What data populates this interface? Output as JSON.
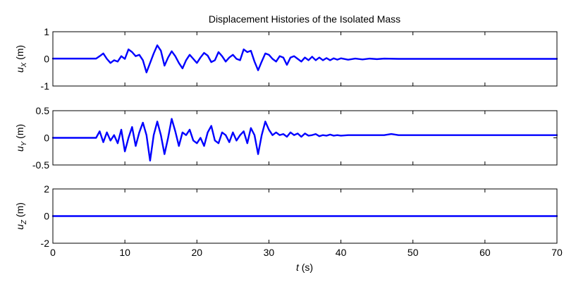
{
  "chart_data": {
    "type": "line",
    "title": "Displacement Histories of the Isolated Mass",
    "xlabel_italic": "t",
    "xlabel_unit": " (s)",
    "xlim": [
      0,
      70
    ],
    "xticks": [
      "0",
      "10",
      "20",
      "30",
      "40",
      "50",
      "60",
      "70"
    ],
    "line_color": "#0000ff",
    "grid": false,
    "panels": [
      {
        "ylabel_main": "u",
        "ylabel_sub": "X",
        "ylabel_unit": " (m)",
        "ylim": [
          -1,
          1
        ],
        "yticks": [
          "-1",
          "0",
          "1"
        ],
        "series": {
          "x": [
            0,
            6,
            6.5,
            7,
            7.5,
            8,
            8.5,
            9,
            9.5,
            10,
            10.5,
            11,
            11.5,
            12,
            12.5,
            13,
            13.5,
            14,
            14.5,
            15,
            15.5,
            16,
            16.5,
            17,
            17.5,
            18,
            18.5,
            19,
            19.5,
            20,
            20.5,
            21,
            21.5,
            22,
            22.5,
            23,
            23.5,
            24,
            24.5,
            25,
            25.5,
            26,
            26.5,
            27,
            27.5,
            28,
            28.5,
            29,
            29.5,
            30,
            30.5,
            31,
            31.5,
            32,
            32.5,
            33,
            33.5,
            34,
            34.5,
            35,
            35.5,
            36,
            36.5,
            37,
            37.5,
            38,
            38.5,
            39,
            39.5,
            40,
            41,
            42,
            43,
            44,
            45,
            46,
            48,
            50,
            52,
            55,
            58,
            60,
            65,
            70
          ],
          "y": [
            0.01,
            0.01,
            0.1,
            0.2,
            0.0,
            -0.15,
            -0.05,
            -0.1,
            0.1,
            0.0,
            0.35,
            0.25,
            0.1,
            0.15,
            -0.05,
            -0.5,
            -0.15,
            0.2,
            0.5,
            0.3,
            -0.25,
            0.05,
            0.28,
            0.1,
            -0.15,
            -0.35,
            -0.05,
            0.15,
            0.0,
            -0.15,
            0.05,
            0.22,
            0.12,
            -0.12,
            -0.05,
            0.25,
            0.1,
            -0.1,
            0.05,
            0.15,
            0.0,
            -0.05,
            0.35,
            0.25,
            0.3,
            -0.1,
            -0.42,
            -0.1,
            0.2,
            0.15,
            0.0,
            -0.1,
            0.1,
            0.05,
            -0.22,
            0.05,
            0.1,
            0.0,
            -0.1,
            0.05,
            -0.05,
            0.08,
            -0.05,
            0.05,
            -0.05,
            0.03,
            -0.05,
            0.02,
            -0.03,
            0.02,
            -0.03,
            0.01,
            -0.02,
            0.01,
            -0.01,
            0.01,
            0.0,
            0.0,
            0.0,
            0.0,
            0.0,
            0.0,
            0.0,
            0.0
          ]
        }
      },
      {
        "ylabel_main": "u",
        "ylabel_sub": "Y",
        "ylabel_unit": " (m)",
        "ylim": [
          -0.5,
          0.5
        ],
        "yticks": [
          "-0.5",
          "0",
          "0.5"
        ],
        "series": {
          "x": [
            0,
            6,
            6.5,
            7,
            7.5,
            8,
            8.5,
            9,
            9.5,
            10,
            10.5,
            11,
            11.5,
            12,
            12.5,
            13,
            13.5,
            14,
            14.5,
            15,
            15.5,
            16,
            16.5,
            17,
            17.5,
            18,
            18.5,
            19,
            19.5,
            20,
            20.5,
            21,
            21.5,
            22,
            22.5,
            23,
            23.5,
            24,
            24.5,
            25,
            25.5,
            26,
            26.5,
            27,
            27.5,
            28,
            28.5,
            29,
            29.5,
            30,
            30.5,
            31,
            31.5,
            32,
            32.5,
            33,
            33.5,
            34,
            34.5,
            35,
            35.5,
            36,
            36.5,
            37,
            37.5,
            38,
            38.5,
            39,
            39.5,
            40,
            41,
            42,
            43,
            44,
            45,
            46,
            47,
            48,
            50,
            52,
            55,
            58,
            60,
            65,
            70
          ],
          "y": [
            0.0,
            0.0,
            0.12,
            -0.08,
            0.1,
            -0.05,
            0.05,
            -0.1,
            0.15,
            -0.25,
            0.0,
            0.2,
            -0.15,
            0.1,
            0.28,
            0.05,
            -0.42,
            0.05,
            0.3,
            0.05,
            -0.3,
            0.0,
            0.35,
            0.12,
            -0.15,
            0.1,
            0.05,
            0.15,
            -0.05,
            -0.1,
            0.0,
            -0.15,
            0.1,
            0.22,
            -0.05,
            -0.1,
            0.1,
            0.05,
            -0.08,
            0.1,
            -0.05,
            0.05,
            0.12,
            -0.1,
            0.18,
            0.05,
            -0.3,
            0.05,
            0.3,
            0.15,
            0.05,
            0.1,
            0.05,
            0.07,
            0.02,
            0.1,
            0.05,
            0.08,
            0.02,
            0.08,
            0.04,
            0.05,
            0.07,
            0.03,
            0.05,
            0.04,
            0.06,
            0.04,
            0.05,
            0.04,
            0.05,
            0.05,
            0.05,
            0.05,
            0.05,
            0.05,
            0.07,
            0.05,
            0.05,
            0.05,
            0.05,
            0.05,
            0.05,
            0.05,
            0.05
          ]
        }
      },
      {
        "ylabel_main": "u",
        "ylabel_sub": "Z",
        "ylabel_unit": " (m)",
        "ylim": [
          -2,
          2
        ],
        "yticks": [
          "-2",
          "0",
          "2"
        ],
        "series": {
          "x": [
            0,
            70
          ],
          "y": [
            0,
            0
          ]
        }
      }
    ]
  }
}
